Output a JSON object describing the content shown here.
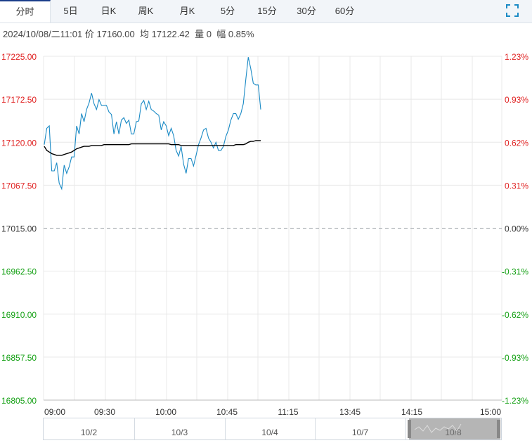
{
  "tabs": [
    {
      "label": "分时",
      "active": true
    },
    {
      "label": "5日",
      "active": false
    },
    {
      "label": "日K",
      "active": false
    },
    {
      "label": "周K",
      "active": false
    },
    {
      "label": "月K",
      "active": false
    },
    {
      "label": "5分",
      "active": false
    },
    {
      "label": "15分",
      "active": false
    },
    {
      "label": "30分",
      "active": false
    },
    {
      "label": "60分",
      "active": false
    }
  ],
  "expand_icon": "fullscreen-expand-icon",
  "info": {
    "datetime": "2024/10/08/二11:01",
    "price_label": "价",
    "price": "17160.00",
    "avg_label": "均",
    "avg": "17122.42",
    "volume_label": "量",
    "volume": "0",
    "change_label": "幅",
    "change": "0.85%"
  },
  "chart_data": {
    "type": "line",
    "y_ticks": [
      "17225.00",
      "17172.50",
      "17120.00",
      "17067.50",
      "17015.00",
      "16962.50",
      "16910.00",
      "16857.50",
      "16805.00"
    ],
    "y_tick_values": [
      17225.0,
      17172.5,
      17120.0,
      17067.5,
      17015.0,
      16962.5,
      16910.0,
      16857.5,
      16805.0
    ],
    "pct_ticks": [
      "1.23%",
      "0.93%",
      "0.62%",
      "0.31%",
      "0.00%",
      "-0.31%",
      "-0.62%",
      "-0.93%",
      "-1.23%"
    ],
    "x_ticks": [
      "09:00",
      "09:30",
      "10:00",
      "10:45",
      "11:15",
      "13:45",
      "14:15",
      "15:00"
    ],
    "ylim": [
      16805.0,
      17225.0
    ],
    "prev_close": 17015.0,
    "colors": {
      "price": "#1a8ac5",
      "average": "#000000",
      "up": "#e02020",
      "down": "#14a014",
      "flat": "#333333",
      "grid": "#e8e8e8"
    },
    "series": [
      {
        "key": "price",
        "values": [
          17117,
          17137,
          17140,
          17085,
          17085,
          17095,
          17070,
          17063,
          17092,
          17082,
          17090,
          17102,
          17102,
          17140,
          17130,
          17155,
          17145,
          17160,
          17168,
          17180,
          17167,
          17160,
          17172,
          17165,
          17165,
          17165,
          17157,
          17154,
          17130,
          17145,
          17130,
          17147,
          17150,
          17143,
          17147,
          17130,
          17130,
          17145,
          17146,
          17167,
          17171,
          17160,
          17170,
          17160,
          17158,
          17155,
          17153,
          17135,
          17145,
          17140,
          17128,
          17137,
          17128,
          17110,
          17103,
          17115,
          17093,
          17082,
          17100,
          17100,
          17091,
          17104,
          17117,
          17125,
          17135,
          17137,
          17125,
          17120,
          17113,
          17120,
          17110,
          17110,
          17115,
          17127,
          17135,
          17147,
          17155,
          17155,
          17148,
          17155,
          17167,
          17197,
          17224,
          17210,
          17192,
          17190,
          17190,
          17160
        ]
      },
      {
        "key": "average",
        "values": [
          17115,
          17110,
          17108,
          17106,
          17105,
          17104,
          17104,
          17104,
          17105,
          17106,
          17107,
          17108,
          17110,
          17112,
          17113,
          17114,
          17115,
          17115,
          17115,
          17116,
          17116,
          17116,
          17116,
          17116,
          17117,
          17117,
          17117,
          17117,
          17117,
          17117,
          17117,
          17117,
          17117,
          17117,
          17117,
          17118,
          17118,
          17118,
          17118,
          17118,
          17118,
          17118,
          17118,
          17118,
          17118,
          17118,
          17118,
          17118,
          17118,
          17118,
          17118,
          17117,
          17117,
          17117,
          17117,
          17116,
          17116,
          17116,
          17116,
          17116,
          17116,
          17116,
          17116,
          17116,
          17116,
          17116,
          17116,
          17116,
          17116,
          17116,
          17116,
          17116,
          17116,
          17116,
          17116,
          17116,
          17116,
          17117,
          17117,
          17117,
          17117,
          17118,
          17120,
          17121,
          17121,
          17122,
          17122,
          17122
        ]
      }
    ],
    "range_labels": [
      "10/2",
      "10/3",
      "10/4",
      "10/7",
      "10/8"
    ]
  }
}
